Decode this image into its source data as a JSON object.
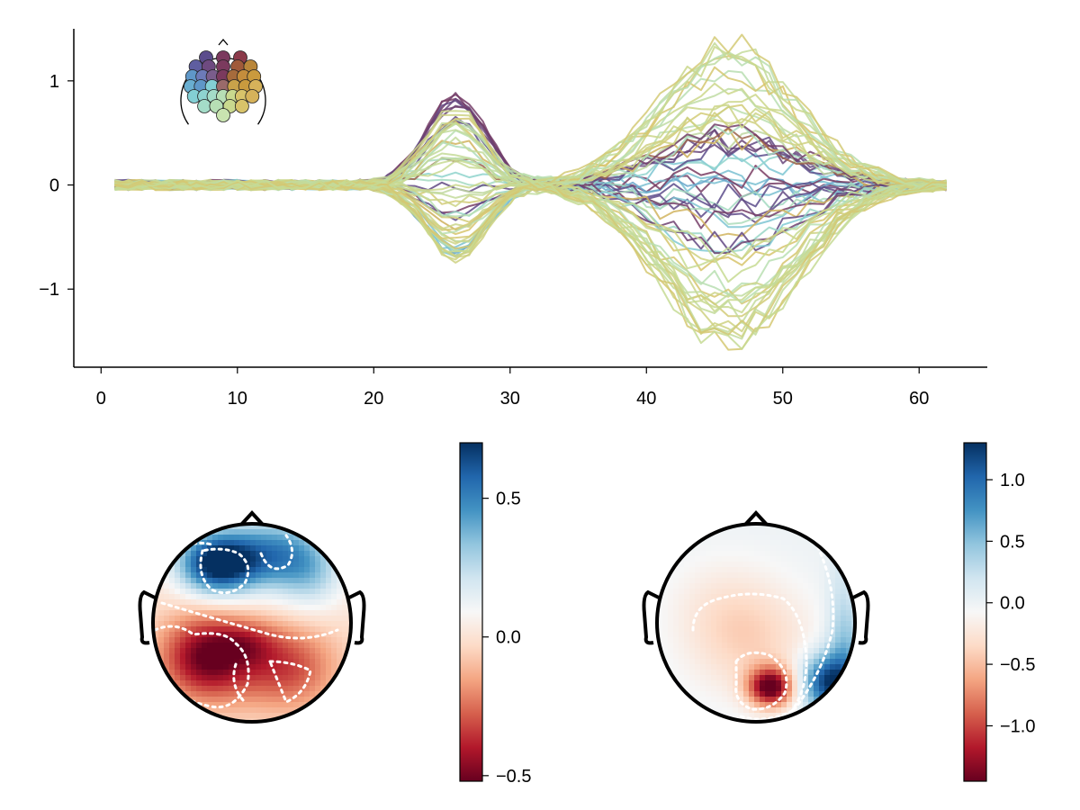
{
  "chart_data": [
    {
      "type": "line",
      "title": "",
      "xlabel": "",
      "ylabel": "",
      "x_range": [
        1,
        62
      ],
      "xlim": [
        -2,
        65
      ],
      "ylim": [
        -1.75,
        1.5
      ],
      "x_ticks": [
        0,
        10,
        20,
        30,
        40,
        50,
        60
      ],
      "x_tick_labels": [
        "0",
        "10",
        "20",
        "30",
        "40",
        "50",
        "60"
      ],
      "y_ticks": [
        1,
        0,
        -1
      ],
      "y_tick_labels": [
        "1",
        "0",
        "−1"
      ],
      "n_channels": 64,
      "components": [
        {
          "peak_time": 26,
          "width": 2.2,
          "max_amplitude": 0.95,
          "min_amplitude": -0.72
        },
        {
          "peak_time": 46,
          "width": 5.0,
          "max_amplitude": 1.35,
          "min_amplitude": -1.6
        }
      ],
      "noise_amplitude": 0.05,
      "grid": false,
      "legend": "channel-position head inset, top-left",
      "colormap": [
        "#5b4c8c",
        "#7b3a5e",
        "#b9863a",
        "#d8c36a",
        "#b7dfb5",
        "#83cfd4",
        "#5f97c8"
      ]
    },
    {
      "type": "heatmap",
      "subtype": "topoplot",
      "title": "",
      "colorbar": {
        "min": -0.52,
        "max": 0.7,
        "ticks": [
          0.5,
          0.0,
          -0.5
        ],
        "tick_labels": [
          "0.5",
          "0.0",
          "−0.5"
        ]
      },
      "features": [
        {
          "kind": "positive",
          "value": 0.7,
          "location": "front-left"
        },
        {
          "kind": "positive",
          "value": 0.4,
          "location": "front-right"
        },
        {
          "kind": "negative",
          "value": -0.52,
          "location": "back-left"
        },
        {
          "kind": "negative",
          "value": -0.3,
          "location": "back-right"
        }
      ]
    },
    {
      "type": "heatmap",
      "subtype": "topoplot",
      "title": "",
      "colorbar": {
        "min": -1.45,
        "max": 1.3,
        "ticks": [
          1.0,
          0.5,
          0.0,
          -0.5,
          -1.0
        ],
        "tick_labels": [
          "1.0",
          "0.5",
          "0.0",
          "−0.5",
          "−1.0"
        ]
      },
      "features": [
        {
          "kind": "negative",
          "value": -1.45,
          "location": "back-center-right"
        },
        {
          "kind": "negative",
          "value": -0.3,
          "location": "center"
        },
        {
          "kind": "positive",
          "value": 1.3,
          "location": "back-right edge"
        },
        {
          "kind": "positive",
          "value": 0.3,
          "location": "right edge"
        }
      ]
    }
  ],
  "colors": {
    "rdbu": [
      "#053061",
      "#2166ac",
      "#4393c3",
      "#92c5de",
      "#d1e5f0",
      "#f7f7f7",
      "#fddbc7",
      "#f4a582",
      "#d6604d",
      "#b2182b",
      "#67001f"
    ]
  }
}
